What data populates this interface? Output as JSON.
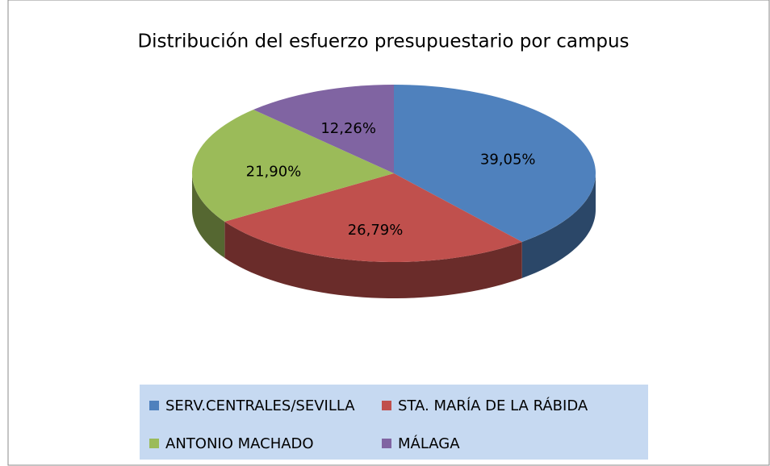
{
  "chart_data": {
    "type": "pie",
    "title": "Distribución del esfuerzo presupuestario por campus",
    "categories": [
      "SERV.CENTRALES/SEVILLA",
      "STA. MARÍA DE LA RÁBIDA",
      "ANTONIO MACHADO",
      "MÁLAGA"
    ],
    "values": [
      39.05,
      26.79,
      21.9,
      12.26
    ],
    "value_labels": [
      "39,05%",
      "26,79%",
      "21,90%",
      "12,26%"
    ],
    "colors": [
      "#4f81bd",
      "#c0504d",
      "#9bbb59",
      "#8064a2"
    ],
    "legend": "bottom"
  }
}
